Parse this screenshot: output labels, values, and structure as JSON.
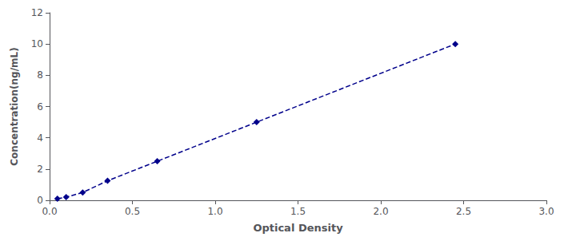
{
  "chart_data": {
    "type": "line",
    "x": [
      0.047,
      0.1,
      0.2,
      0.35,
      0.65,
      1.25,
      2.45
    ],
    "values": [
      0.1,
      0.2,
      0.5,
      1.25,
      2.5,
      5.0,
      10.0
    ],
    "color": "#00008B",
    "marker": "diamond",
    "line_style": "dashed",
    "xlabel": "Optical Density",
    "ylabel": "Concentration(ng/mL)",
    "xlim": [
      0,
      3
    ],
    "ylim": [
      0,
      12
    ],
    "xticks": [
      {
        "value": 0,
        "label": "0.0"
      },
      {
        "value": 0.5,
        "label": "0.5"
      },
      {
        "value": 1,
        "label": "1.0"
      },
      {
        "value": 1.5,
        "label": "1.5"
      },
      {
        "value": 2,
        "label": "2.0"
      },
      {
        "value": 2.5,
        "label": "2.5"
      },
      {
        "value": 3,
        "label": "3.0"
      }
    ],
    "yticks": [
      0,
      2,
      4,
      6,
      8,
      10,
      12
    ],
    "grid": false
  }
}
